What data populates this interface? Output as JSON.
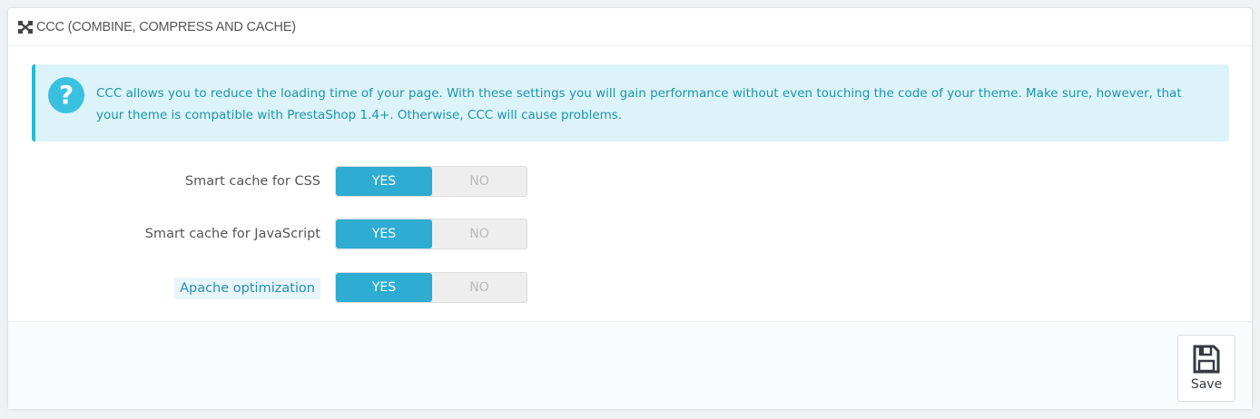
{
  "panel": {
    "title": "CCC (COMBINE, COMPRESS AND CACHE)",
    "title_icon": "arrows-expand-icon"
  },
  "alert": {
    "icon": "question-circle-icon",
    "text": "CCC allows you to reduce the loading time of your page. With these settings you will gain performance without even touching the code of your theme. Make sure, however, that your theme is compatible with PrestaShop 1.4+. Otherwise, CCC will cause problems."
  },
  "settings": [
    {
      "label": "Smart cache for CSS",
      "yes": "YES",
      "no": "NO",
      "value": "YES"
    },
    {
      "label": "Smart cache for JavaScript",
      "yes": "YES",
      "no": "NO",
      "value": "YES"
    },
    {
      "label": "Apache optimization",
      "yes": "YES",
      "no": "NO",
      "value": "YES"
    }
  ],
  "footer": {
    "save_label": "Save",
    "save_icon": "floppy-disk-icon"
  },
  "colors": {
    "accent": "#2eacd1",
    "alert_bg": "#dcf4f9"
  }
}
